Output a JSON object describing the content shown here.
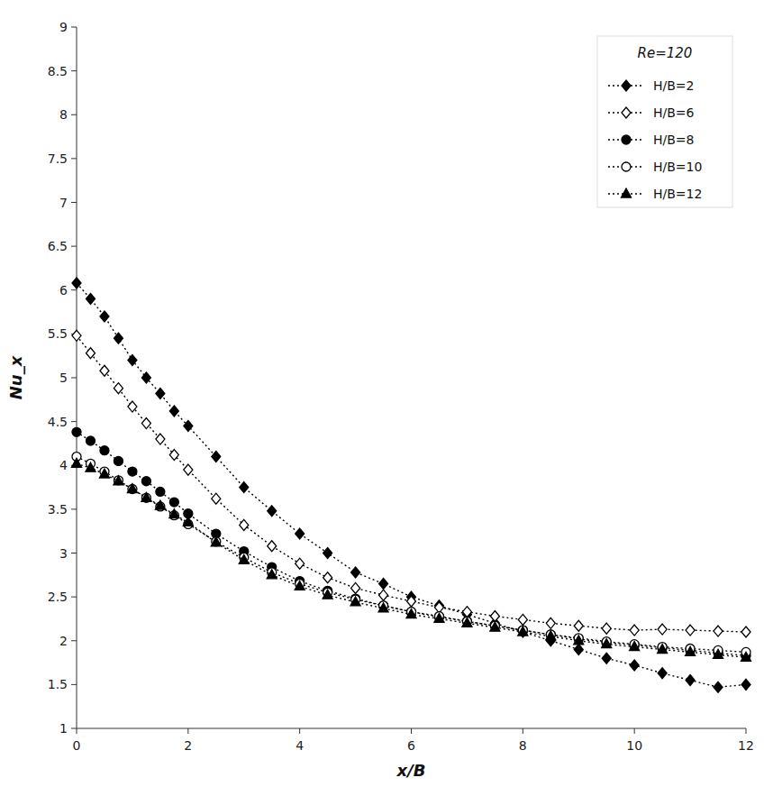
{
  "chart_data": {
    "type": "line",
    "xlabel": "x/B",
    "ylabel": "Nu_x",
    "legend_title": "Re=120",
    "legend": "upper-right",
    "grid": false,
    "xlim": [
      0,
      12
    ],
    "ylim": [
      1,
      9
    ],
    "xticks": [
      0,
      2,
      4,
      6,
      8,
      10,
      12
    ],
    "yticks": [
      1,
      1.5,
      2,
      2.5,
      3,
      3.5,
      4,
      4.5,
      5,
      5.5,
      6,
      6.5,
      7,
      7.5,
      8,
      8.5,
      9
    ],
    "x": [
      0,
      0.25,
      0.5,
      0.75,
      1.0,
      1.25,
      1.5,
      1.75,
      2.0,
      2.5,
      3.0,
      3.5,
      4.0,
      4.5,
      5.0,
      5.5,
      6.0,
      6.5,
      7.0,
      7.5,
      8.0,
      8.5,
      9.0,
      9.5,
      10.0,
      10.5,
      11.0,
      11.5,
      12.0
    ],
    "series": [
      {
        "name": "H/B=2",
        "color": "black",
        "marker": "diamond",
        "line_style": "dotted",
        "values": [
          6.08,
          5.9,
          5.7,
          5.45,
          5.2,
          5.0,
          4.82,
          4.62,
          4.45,
          4.1,
          3.75,
          3.48,
          3.22,
          3.0,
          2.78,
          2.65,
          2.5,
          2.4,
          2.3,
          2.2,
          2.1,
          2.0,
          1.9,
          1.8,
          1.72,
          1.63,
          1.55,
          1.47,
          1.5
        ]
      },
      {
        "name": "H/B=6",
        "color": "black",
        "marker": "diamond-open",
        "line_style": "dotted",
        "values": [
          5.48,
          5.28,
          5.08,
          4.88,
          4.67,
          4.48,
          4.3,
          4.12,
          3.95,
          3.62,
          3.32,
          3.08,
          2.88,
          2.72,
          2.6,
          2.52,
          2.45,
          2.38,
          2.33,
          2.28,
          2.24,
          2.2,
          2.17,
          2.14,
          2.12,
          2.13,
          2.12,
          2.11,
          2.1
        ]
      },
      {
        "name": "H/B=8",
        "color": "black",
        "marker": "circle",
        "line_style": "dotted",
        "values": [
          4.38,
          4.28,
          4.17,
          4.05,
          3.93,
          3.82,
          3.7,
          3.58,
          3.45,
          3.22,
          3.02,
          2.84,
          2.68,
          2.57,
          2.48,
          2.4,
          2.33,
          2.27,
          2.22,
          2.17,
          2.12,
          2.07,
          2.02,
          1.98,
          1.95,
          1.92,
          1.89,
          1.86,
          1.83
        ]
      },
      {
        "name": "H/B=10",
        "color": "black",
        "marker": "circle-open",
        "line_style": "dotted",
        "values": [
          4.1,
          4.02,
          3.93,
          3.83,
          3.73,
          3.63,
          3.53,
          3.43,
          3.33,
          3.13,
          2.95,
          2.78,
          2.65,
          2.55,
          2.47,
          2.4,
          2.33,
          2.28,
          2.22,
          2.17,
          2.12,
          2.07,
          2.03,
          1.99,
          1.96,
          1.93,
          1.91,
          1.89,
          1.87
        ]
      },
      {
        "name": "H/B=12",
        "color": "black",
        "marker": "triangle",
        "line_style": "dotted",
        "values": [
          4.02,
          3.97,
          3.9,
          3.82,
          3.73,
          3.63,
          3.54,
          3.44,
          3.35,
          3.12,
          2.92,
          2.75,
          2.62,
          2.52,
          2.44,
          2.37,
          2.3,
          2.25,
          2.2,
          2.15,
          2.1,
          2.05,
          2.0,
          1.96,
          1.93,
          1.9,
          1.87,
          1.84,
          1.81
        ]
      }
    ]
  }
}
